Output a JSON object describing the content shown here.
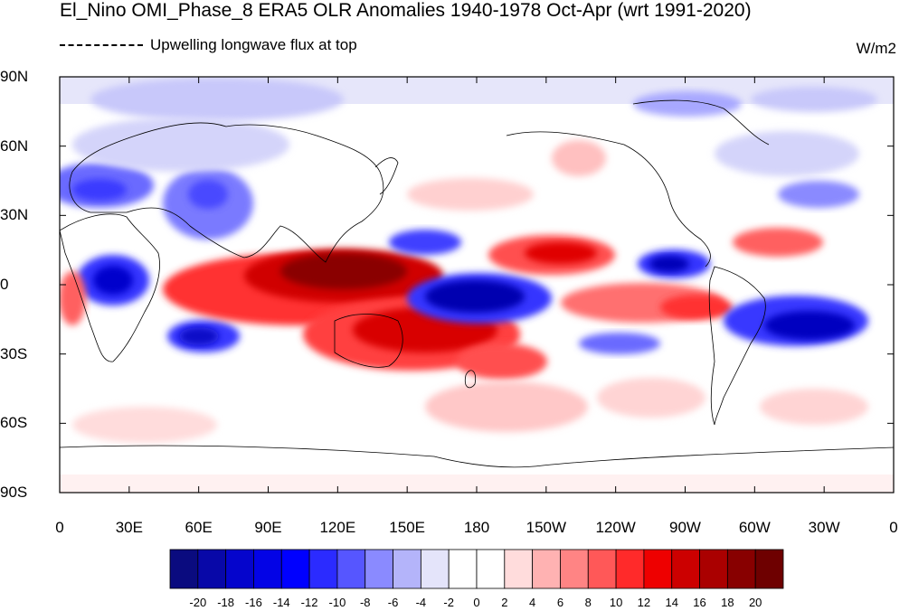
{
  "title": "El_Nino OMI_Phase_8 ERA5 OLR Anomalies 1940-1978 Oct-Apr (wrt 1991-2020)",
  "legend_line": "Upwelling longwave flux at top",
  "units": "W/m2",
  "lat_ticks": [
    "90N",
    "60N",
    "30N",
    "0",
    "30S",
    "60S",
    "90S"
  ],
  "lon_ticks": [
    "0",
    "30E",
    "60E",
    "90E",
    "120E",
    "150E",
    "180",
    "150W",
    "120W",
    "90W",
    "60W",
    "30W",
    "0"
  ],
  "colorbar": {
    "labels": [
      "-20",
      "-18",
      "-16",
      "-14",
      "-12",
      "-10",
      "-8",
      "-6",
      "-4",
      "-2",
      "0",
      "2",
      "4",
      "6",
      "8",
      "10",
      "12",
      "14",
      "16",
      "18",
      "20"
    ],
    "colors": [
      "#0a0b7f",
      "#0808a8",
      "#0505cc",
      "#0303e6",
      "#0000ff",
      "#2b2bff",
      "#5656ff",
      "#8a8aff",
      "#b4b4fa",
      "#e4e4fa",
      "#ffffff",
      "#ffffff",
      "#ffdcdc",
      "#ffb2b2",
      "#ff8484",
      "#ff5858",
      "#ff2a2a",
      "#ee0000",
      "#cc0000",
      "#aa0000",
      "#880000",
      "#6e0000"
    ]
  },
  "palette": {
    "neg_strong": "#0404c8",
    "neg_mid": "#5a5aff",
    "neg_light": "#c8c8fa",
    "pos_light": "#ffcaca",
    "pos_mid": "#ff5a5a",
    "pos_strong": "#c80000",
    "pos_max": "#7a0000"
  }
}
